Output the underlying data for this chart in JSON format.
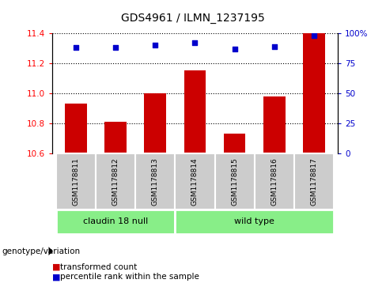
{
  "title": "GDS4961 / ILMN_1237195",
  "samples": [
    "GSM1178811",
    "GSM1178812",
    "GSM1178813",
    "GSM1178814",
    "GSM1178815",
    "GSM1178816",
    "GSM1178817"
  ],
  "red_values": [
    10.93,
    10.81,
    11.0,
    11.15,
    10.73,
    10.98,
    11.4
  ],
  "blue_values": [
    88,
    88,
    90,
    92,
    87,
    89,
    98
  ],
  "ylim_left": [
    10.6,
    11.4
  ],
  "ylim_right": [
    0,
    100
  ],
  "yticks_left": [
    10.6,
    10.8,
    11.0,
    11.2,
    11.4
  ],
  "yticks_right": [
    0,
    25,
    50,
    75,
    100
  ],
  "bar_color": "#cc0000",
  "dot_color": "#0000cc",
  "group1_label": "claudin 18 null",
  "group2_label": "wild type",
  "group1_count": 3,
  "group2_count": 4,
  "group_bg_color": "#88ee88",
  "sample_bg_color": "#cccccc",
  "legend_red_label": "transformed count",
  "legend_blue_label": "percentile rank within the sample",
  "genotype_label": "genotype/variation",
  "bar_bottom": 10.6
}
